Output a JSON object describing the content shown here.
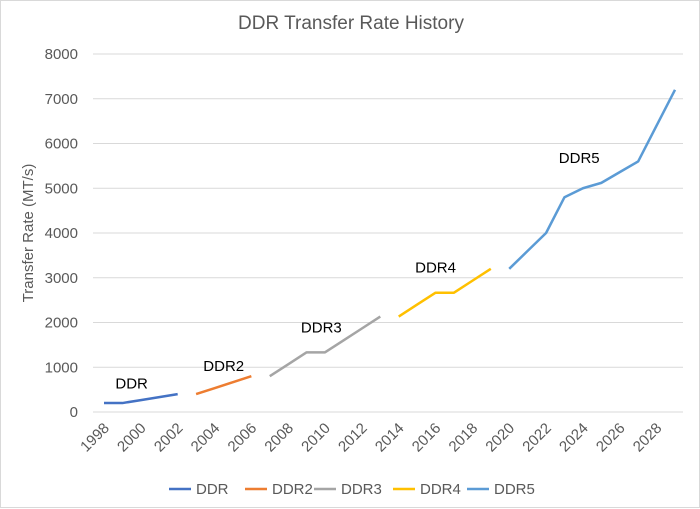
{
  "chart_data": {
    "type": "line",
    "title": "DDR Transfer Rate History",
    "xlabel": "",
    "ylabel": "Transfer Rate (MT/s)",
    "ylim": [
      0,
      8000
    ],
    "xlim": [
      1998,
      2029
    ],
    "yticks": [
      0,
      1000,
      2000,
      3000,
      4000,
      5000,
      6000,
      7000,
      8000
    ],
    "xticks": [
      1998,
      2000,
      2002,
      2004,
      2006,
      2008,
      2010,
      2012,
      2014,
      2016,
      2018,
      2020,
      2022,
      2024,
      2026,
      2028
    ],
    "grid": "horizontal",
    "legend": "bottom",
    "series": [
      {
        "name": "DDR",
        "color": "#4472C4",
        "label_at": [
          1999.5,
          530
        ],
        "x": [
          1998,
          1999,
          2000,
          2001,
          2002
        ],
        "y": [
          200,
          200,
          266,
          333,
          400
        ]
      },
      {
        "name": "DDR2",
        "color": "#ED7D31",
        "label_at": [
          2004.5,
          920
        ],
        "x": [
          2003,
          2004,
          2005,
          2006
        ],
        "y": [
          400,
          533,
          667,
          800
        ]
      },
      {
        "name": "DDR3",
        "color": "#A5A5A5",
        "label_at": [
          2009.8,
          1780
        ],
        "x": [
          2007,
          2008,
          2009,
          2010,
          2011,
          2012,
          2013
        ],
        "y": [
          800,
          1066,
          1333,
          1333,
          1600,
          1866,
          2133
        ]
      },
      {
        "name": "DDR4",
        "color": "#FFC000",
        "label_at": [
          2016,
          3120
        ],
        "x": [
          2014,
          2015,
          2016,
          2017,
          2018,
          2019
        ],
        "y": [
          2133,
          2400,
          2666,
          2666,
          2933,
          3200
        ]
      },
      {
        "name": "DDR5",
        "color": "#5B9BD5",
        "label_at": [
          2023.8,
          5560
        ],
        "x": [
          2020,
          2021,
          2022,
          2023,
          2024,
          2025,
          2026,
          2027,
          2029
        ],
        "y": [
          3200,
          3600,
          4000,
          4800,
          5000,
          5120,
          5360,
          5600,
          7200
        ]
      }
    ]
  }
}
